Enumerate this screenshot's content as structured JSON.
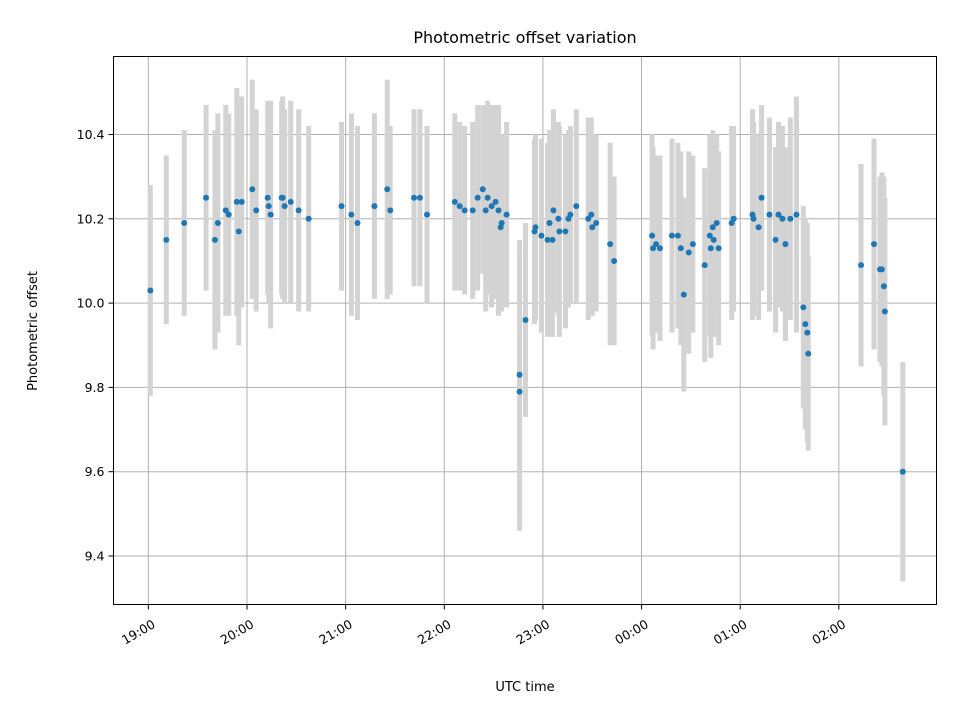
{
  "chart_data": {
    "type": "scatter",
    "title": "Photometric offset variation",
    "xlabel": "UTC time",
    "ylabel": "Photometric offset",
    "x_unit": "minutes",
    "x_ticks": [
      {
        "label": "19:00",
        "x": 0
      },
      {
        "label": "20:00",
        "x": 60
      },
      {
        "label": "21:00",
        "x": 120
      },
      {
        "label": "22:00",
        "x": 180
      },
      {
        "label": "23:00",
        "x": 240
      },
      {
        "label": "00:00",
        "x": 300
      },
      {
        "label": "01:00",
        "x": 360
      },
      {
        "label": "02:00",
        "x": 420
      }
    ],
    "y_ticks": [
      9.4,
      9.6,
      9.8,
      10.0,
      10.2,
      10.4
    ],
    "xlim": [
      -21.2,
      479.4
    ],
    "ylim": [
      9.285,
      10.585
    ],
    "grid": true,
    "colors": {
      "point": "#1f77b4",
      "errorbar": "#d3d3d3",
      "grid": "#b0b0b0"
    },
    "points": [
      [
        1.2,
        10.03,
        0.25
      ],
      [
        10.9,
        10.15,
        0.2
      ],
      [
        21.8,
        10.19,
        0.22
      ],
      [
        35.1,
        10.25,
        0.22
      ],
      [
        40.5,
        10.15,
        0.26
      ],
      [
        42.3,
        10.19,
        0.26
      ],
      [
        47.1,
        10.22,
        0.25
      ],
      [
        48.9,
        10.21,
        0.24
      ],
      [
        53.8,
        10.24,
        0.27
      ],
      [
        55.0,
        10.17,
        0.27
      ],
      [
        56.8,
        10.24,
        0.25
      ],
      [
        63.2,
        10.27,
        0.26
      ],
      [
        65.6,
        10.22,
        0.24
      ],
      [
        72.6,
        10.25,
        0.23
      ],
      [
        73.2,
        10.23,
        0.23
      ],
      [
        74.4,
        10.21,
        0.27
      ],
      [
        81.1,
        10.25,
        0.23
      ],
      [
        81.7,
        10.25,
        0.24
      ],
      [
        82.9,
        10.23,
        0.23
      ],
      [
        86.6,
        10.24,
        0.24
      ],
      [
        91.4,
        10.22,
        0.24
      ],
      [
        97.5,
        10.2,
        0.22
      ],
      [
        117.5,
        10.23,
        0.2
      ],
      [
        123.5,
        10.21,
        0.24
      ],
      [
        127.2,
        10.19,
        0.23
      ],
      [
        137.5,
        10.23,
        0.22
      ],
      [
        145.3,
        10.27,
        0.26
      ],
      [
        147.1,
        10.22,
        0.2
      ],
      [
        161.6,
        10.25,
        0.21
      ],
      [
        165.2,
        10.25,
        0.21
      ],
      [
        169.5,
        10.21,
        0.21
      ],
      [
        186.4,
        10.24,
        0.21
      ],
      [
        189.4,
        10.23,
        0.2
      ],
      [
        192.4,
        10.22,
        0.2
      ],
      [
        197.3,
        10.22,
        0.21
      ],
      [
        200.3,
        10.25,
        0.22
      ],
      [
        203.4,
        10.27,
        0.2
      ],
      [
        205.2,
        10.22,
        0.24
      ],
      [
        206.4,
        10.25,
        0.23
      ],
      [
        208.8,
        10.23,
        0.24
      ],
      [
        211.2,
        10.24,
        0.23
      ],
      [
        213.0,
        10.22,
        0.25
      ],
      [
        214.3,
        10.18,
        0.2
      ],
      [
        214.9,
        10.19,
        0.21
      ],
      [
        217.9,
        10.21,
        0.22
      ],
      [
        225.8,
        9.83,
        0.32
      ],
      [
        225.8,
        9.79,
        0.33
      ],
      [
        229.4,
        9.96,
        0.23
      ],
      [
        234.9,
        10.17,
        0.22
      ],
      [
        235.5,
        10.18,
        0.22
      ],
      [
        239.1,
        10.16,
        0.23
      ],
      [
        242.8,
        10.15,
        0.23
      ],
      [
        244.0,
        10.19,
        0.22
      ],
      [
        245.8,
        10.15,
        0.23
      ],
      [
        246.4,
        10.22,
        0.24
      ],
      [
        249.4,
        10.2,
        0.23
      ],
      [
        250.0,
        10.17,
        0.25
      ],
      [
        253.7,
        10.17,
        0.23
      ],
      [
        255.5,
        10.2,
        0.21
      ],
      [
        256.7,
        10.21,
        0.21
      ],
      [
        260.3,
        10.23,
        0.23
      ],
      [
        267.6,
        10.2,
        0.24
      ],
      [
        269.4,
        10.21,
        0.23
      ],
      [
        270.0,
        10.18,
        0.21
      ],
      [
        272.4,
        10.19,
        0.21
      ],
      [
        280.9,
        10.14,
        0.24
      ],
      [
        283.3,
        10.1,
        0.2
      ],
      [
        306.4,
        10.16,
        0.24
      ],
      [
        307.0,
        10.13,
        0.24
      ],
      [
        308.8,
        10.14,
        0.21
      ],
      [
        311.2,
        10.13,
        0.22
      ],
      [
        318.5,
        10.16,
        0.23
      ],
      [
        322.1,
        10.16,
        0.22
      ],
      [
        323.9,
        10.13,
        0.23
      ],
      [
        325.7,
        10.02,
        0.23
      ],
      [
        328.7,
        10.12,
        0.24
      ],
      [
        331.2,
        10.14,
        0.21
      ],
      [
        338.4,
        10.09,
        0.23
      ],
      [
        341.5,
        10.16,
        0.24
      ],
      [
        342.1,
        10.13,
        0.26
      ],
      [
        343.3,
        10.18,
        0.23
      ],
      [
        343.9,
        10.15,
        0.23
      ],
      [
        345.7,
        10.19,
        0.21
      ],
      [
        346.9,
        10.13,
        0.23
      ],
      [
        354.8,
        10.19,
        0.23
      ],
      [
        356.0,
        10.2,
        0.22
      ],
      [
        367.5,
        10.21,
        0.25
      ],
      [
        368.1,
        10.2,
        0.23
      ],
      [
        371.2,
        10.18,
        0.22
      ],
      [
        373.0,
        10.25,
        0.22
      ],
      [
        377.8,
        10.21,
        0.23
      ],
      [
        381.5,
        10.15,
        0.22
      ],
      [
        383.3,
        10.21,
        0.22
      ],
      [
        385.7,
        10.2,
        0.22
      ],
      [
        387.5,
        10.14,
        0.23
      ],
      [
        390.5,
        10.2,
        0.24
      ],
      [
        394.2,
        10.21,
        0.28
      ],
      [
        398.4,
        9.99,
        0.24
      ],
      [
        399.6,
        9.95,
        0.25
      ],
      [
        400.8,
        9.93,
        0.26
      ],
      [
        401.4,
        9.88,
        0.23
      ],
      [
        433.5,
        10.09,
        0.24
      ],
      [
        441.4,
        10.14,
        0.25
      ],
      [
        445.0,
        10.08,
        0.22
      ],
      [
        446.2,
        10.08,
        0.23
      ],
      [
        447.4,
        10.04,
        0.26
      ],
      [
        448.0,
        9.98,
        0.27
      ],
      [
        458.9,
        9.6,
        0.26
      ]
    ]
  }
}
